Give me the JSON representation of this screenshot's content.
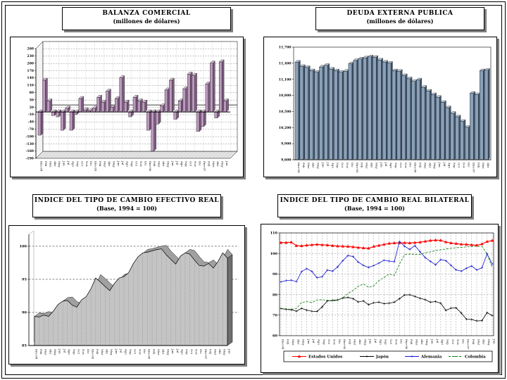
{
  "chart_data": [
    {
      "id": "balanza",
      "type": "bar",
      "three_d": true,
      "title": "BALANZA COMERCIAL",
      "subtitle": "(millones de dólares)",
      "bar_color": "#BC98BE",
      "bar_side_color": "#7D5F80",
      "bar_top_color": "#D9C2DA",
      "ylim": [
        -190,
        260
      ],
      "y_ticks": [
        260,
        230,
        200,
        170,
        140,
        110,
        80,
        50,
        20,
        -10,
        -40,
        -70,
        -100,
        -130,
        -160,
        -190
      ],
      "grid": "dashed",
      "categories": [
        "Ene-94",
        "Feb",
        "Mar",
        "Abr",
        "May",
        "Jun",
        "Jul",
        "Ago",
        "Sep",
        "Oct",
        "Nov",
        "Dic",
        "Ene-95",
        "Feb",
        "Mar",
        "Abr",
        "May",
        "Jun",
        "Jul",
        "Ago",
        "Sep",
        "Oct",
        "Nov",
        "Dic",
        "Ene-96",
        "Feb",
        "Mar",
        "Abr",
        "May",
        "Jun",
        "Jul",
        "Ago",
        "Sep",
        "Oct",
        "Nov",
        "Dic",
        "Ene-97",
        "Feb",
        "Mar",
        "Abr",
        "May",
        "Jun"
      ],
      "values": [
        -95,
        130,
        45,
        -15,
        -20,
        -75,
        15,
        -75,
        -10,
        55,
        8,
        5,
        15,
        60,
        40,
        85,
        20,
        55,
        140,
        40,
        -20,
        60,
        45,
        40,
        -75,
        -160,
        -50,
        25,
        90,
        130,
        -30,
        45,
        95,
        155,
        150,
        -80,
        -60,
        115,
        200,
        -25,
        205,
        45
      ]
    },
    {
      "id": "deuda",
      "type": "bar",
      "three_d": false,
      "title": "DEUDA EXTERNA PUBLICA",
      "subtitle": "(millones de dólares)",
      "bar_color": "#8AA1B8",
      "bar_side_color": "#455972",
      "bar_top_color": "#B9C9D8",
      "ylim": [
        9600,
        11700
      ],
      "y_tick_labels": [
        "11,700",
        "11,400",
        "11,100",
        "10,800",
        "10,500",
        "10,200",
        "9,900",
        "9,600"
      ],
      "y_tick_values": [
        11700,
        11400,
        11100,
        10800,
        10500,
        10200,
        9900,
        9600
      ],
      "categories": [
        "Ene-94",
        "Feb",
        "Mar",
        "Abr",
        "May",
        "Jun",
        "Jul",
        "Ago",
        "Sep",
        "Oct",
        "Nov",
        "Dic",
        "Ene-95",
        "Feb",
        "Mar",
        "Abr",
        "May",
        "Jun",
        "Jul",
        "Ago",
        "Sep",
        "Oct",
        "Nov",
        "Dic",
        "Ene-96",
        "Feb",
        "Mar",
        "Abr",
        "May",
        "Jun",
        "Jul",
        "Ago",
        "Sep",
        "Oct",
        "Nov",
        "Dic",
        "Ene-97",
        "Feb",
        "Mar",
        "Abr"
      ],
      "values": [
        11420,
        11340,
        11320,
        11260,
        11230,
        11330,
        11360,
        11290,
        11260,
        11230,
        11250,
        11390,
        11450,
        11480,
        11500,
        11520,
        11510,
        11460,
        11420,
        11400,
        11260,
        11250,
        11170,
        11110,
        11060,
        11090,
        10950,
        10880,
        10815,
        10765,
        10670,
        10570,
        10465,
        10400,
        10315,
        10205,
        10840,
        10815,
        11260,
        11270
      ]
    },
    {
      "id": "efectivo",
      "type": "area",
      "three_d": true,
      "title": "INDICE DEL TIPO DE CAMBIO EFECTIVO REAL",
      "subtitle": "(Base, 1994 = 100)",
      "area_color": "#C4C4C4",
      "area_band_color": "#A0A0A0",
      "area_face_color": "#6F6F6F",
      "ylim": [
        85,
        101.8
      ],
      "y_ticks": [
        100,
        95,
        90,
        85
      ],
      "grid_y": [
        100,
        95,
        90
      ],
      "categories": [
        "Ene-94",
        "Feb",
        "Mar",
        "Abr",
        "May",
        "Jun",
        "Jul",
        "Ago",
        "Sep",
        "Oct",
        "Nov",
        "Dic",
        "Ene-95",
        "Feb",
        "Mar",
        "Abr",
        "May",
        "Jun",
        "Jul",
        "Ago",
        "Sep",
        "Oct",
        "Nov",
        "Dic",
        "Ene-96",
        "Feb",
        "Mar",
        "Abr",
        "May",
        "Jun",
        "Jul",
        "Ago",
        "Sep",
        "Oct",
        "Nov",
        "Dic",
        "Ene-97",
        "Feb",
        "Mar",
        "Abr",
        "May",
        "Jun"
      ],
      "values": [
        89.4,
        89.3,
        89.6,
        89.4,
        90.2,
        91.2,
        91.7,
        91.8,
        91.1,
        90.8,
        91.9,
        92.4,
        93.6,
        95.2,
        94.6,
        93.9,
        93.3,
        94.4,
        95.2,
        95.4,
        96.0,
        97.4,
        98.4,
        99.0,
        99.1,
        99.3,
        99.5,
        99.6,
        98.7,
        98.0,
        97.3,
        98.5,
        99.0,
        98.8,
        97.9,
        97.1,
        97.0,
        97.4,
        96.7,
        97.7,
        99.0,
        98.2
      ]
    },
    {
      "id": "bilateral",
      "type": "line",
      "title": "INDICE DEL TIPO DE CAMBIO REAL BILATERAL",
      "subtitle": "(Base, 1994 = 100)",
      "ylim": [
        60,
        110
      ],
      "y_ticks": [
        110,
        100,
        90,
        80,
        70,
        60
      ],
      "grid_y": [
        100,
        90,
        80,
        70
      ],
      "grid_color": "#808080",
      "legend_position": "bottom",
      "categories": [
        "Ene-94",
        "Feb",
        "Mar",
        "Abr",
        "May",
        "Jun",
        "Jul",
        "Ago",
        "Sep",
        "Oct",
        "Nov",
        "Dic",
        "Ene-95",
        "Feb",
        "Mar",
        "Abr",
        "May",
        "Jun",
        "Jul",
        "Ago",
        "Sep",
        "Oct",
        "Nov",
        "Dic",
        "Ene-96",
        "Feb",
        "Mar",
        "Abr",
        "May",
        "Jun",
        "Jul",
        "Ago",
        "Sep",
        "Oct",
        "Nov",
        "Dic",
        "Ene-97",
        "Feb",
        "Mar",
        "Abr",
        "May",
        "Jun"
      ],
      "series": [
        {
          "name": "Estados Unidos",
          "color": "#FF0000",
          "marker": "triangle",
          "dashed": false,
          "values": [
            105.3,
            105.3,
            105.5,
            103.8,
            103.7,
            104.0,
            104.2,
            104.4,
            104.2,
            104.1,
            103.8,
            103.6,
            103.5,
            103.4,
            103.2,
            102.9,
            102.7,
            102.5,
            103.4,
            103.9,
            104.4,
            104.9,
            105.1,
            105.2,
            105.2,
            105.1,
            105.3,
            105.5,
            105.9,
            106.3,
            106.5,
            106.4,
            105.6,
            105.1,
            104.8,
            104.5,
            104.4,
            104.2,
            104.0,
            104.6,
            105.8,
            106.3
          ]
        },
        {
          "name": "Japón",
          "color": "#000000",
          "marker": "plus",
          "dashed": false,
          "values": [
            73.2,
            72.8,
            72.6,
            71.9,
            73.3,
            72.4,
            71.9,
            71.8,
            74.0,
            76.9,
            77.2,
            77.4,
            78.3,
            78.6,
            78.0,
            76.4,
            76.9,
            75.1,
            76.0,
            76.3,
            75.6,
            75.8,
            76.3,
            78.0,
            79.8,
            79.9,
            79.1,
            78.2,
            77.5,
            76.3,
            76.6,
            75.8,
            72.3,
            73.4,
            73.5,
            71.0,
            68.0,
            67.9,
            67.2,
            67.3,
            71.2,
            69.8
          ]
        },
        {
          "name": "Alemania",
          "color": "#1414CC",
          "marker": "plus",
          "dashed": false,
          "values": [
            86.2,
            86.8,
            87.0,
            86.3,
            91.2,
            92.6,
            91.3,
            88.2,
            88.7,
            91.9,
            91.4,
            93.5,
            96.5,
            99.0,
            98.5,
            95.8,
            94.2,
            93.2,
            94.1,
            95.3,
            96.7,
            96.3,
            96.0,
            105.8,
            103.5,
            102.0,
            103.8,
            100.8,
            98.0,
            96.2,
            94.5,
            97.0,
            96.5,
            94.2,
            92.0,
            91.4,
            92.8,
            93.9,
            92.0,
            93.0,
            99.8,
            94.9
          ]
        },
        {
          "name": "Colombia",
          "color": "#0E7A0E",
          "marker": "dash",
          "dashed": true,
          "values": [
            73.3,
            73.0,
            72.8,
            73.2,
            76.2,
            76.6,
            76.1,
            77.4,
            77.5,
            77.3,
            76.8,
            77.2,
            78.5,
            80.5,
            82.0,
            84.0,
            85.2,
            83.5,
            84.2,
            86.8,
            88.3,
            90.0,
            89.3,
            94.8,
            99.5,
            99.7,
            99.6,
            99.5,
            100.3,
            100.8,
            101.4,
            101.8,
            102.2,
            102.5,
            102.8,
            103.0,
            103.2,
            103.4,
            103.5,
            103.5,
            99.8,
            93.2
          ]
        }
      ]
    }
  ]
}
